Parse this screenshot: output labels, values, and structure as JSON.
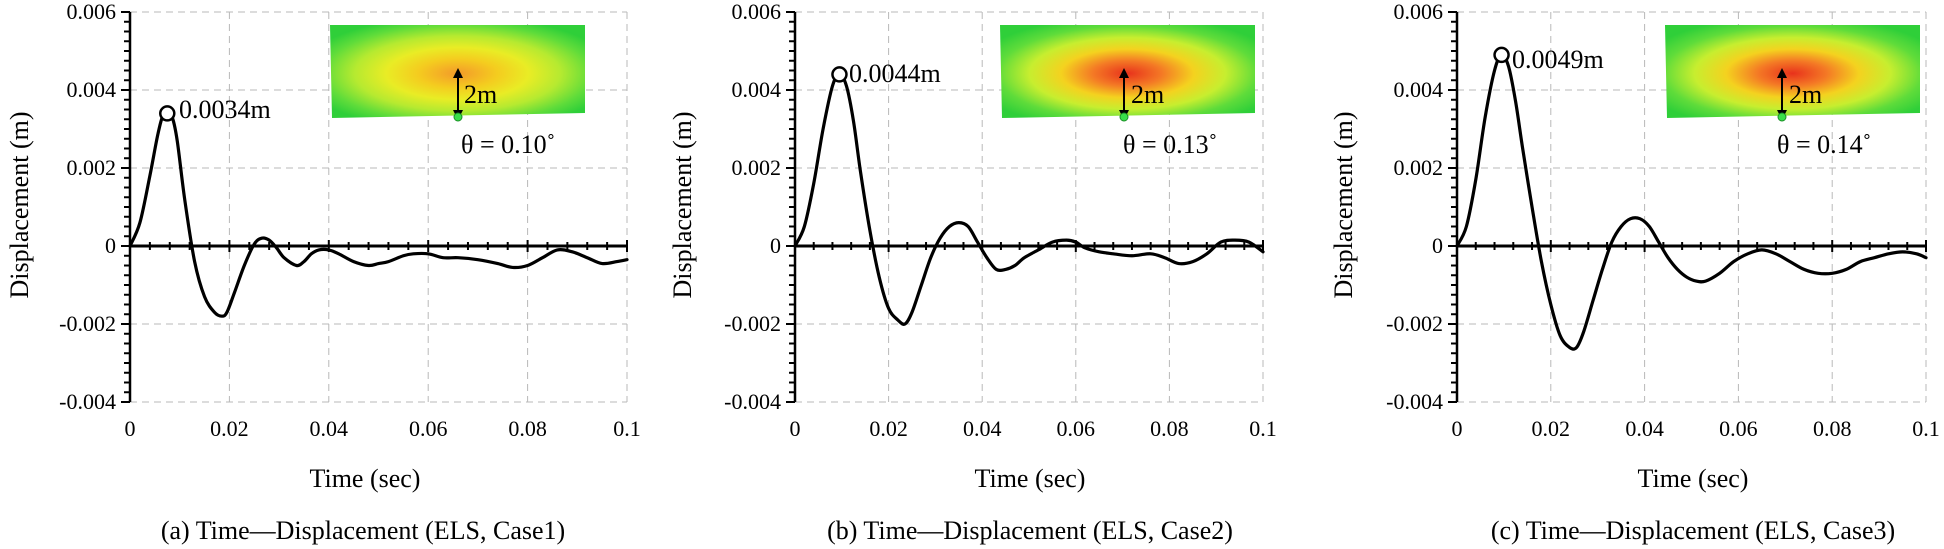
{
  "chart_data": [
    {
      "type": "line",
      "caption": "(a) Time—Displacement (ELS, Case1)",
      "xlabel": "Time (sec)",
      "ylabel": "Displacement (m)",
      "xlim": [
        0,
        0.1
      ],
      "ylim": [
        -0.004,
        0.006
      ],
      "xticks": [
        "0",
        "0.02",
        "0.04",
        "0.06",
        "0.08",
        "0.1"
      ],
      "yticks": [
        "-0.004",
        "-0.002",
        "0",
        "0.002",
        "0.004",
        "0.006"
      ],
      "grid": true,
      "peak": {
        "x": 0.0075,
        "y": 0.0034,
        "label": "0.0034m"
      },
      "inset": {
        "depth_label": "2m",
        "theta_label": "θ = 0.10˚"
      },
      "series": [
        {
          "x": [
            0,
            0.002,
            0.004,
            0.0055,
            0.0065,
            0.0075,
            0.0085,
            0.0095,
            0.011,
            0.013,
            0.015,
            0.017,
            0.0185,
            0.0195,
            0.021,
            0.023,
            0.025,
            0.0265,
            0.028,
            0.0295,
            0.031,
            0.0335,
            0.035,
            0.0365,
            0.038,
            0.04,
            0.042,
            0.045,
            0.048,
            0.05,
            0.052,
            0.055,
            0.057,
            0.06,
            0.063,
            0.066,
            0.07,
            0.074,
            0.077,
            0.08,
            0.083,
            0.086,
            0.089,
            0.092,
            0.095,
            0.098,
            0.1
          ],
          "y": [
            0,
            0.0006,
            0.0018,
            0.0028,
            0.0033,
            0.0034,
            0.0033,
            0.0027,
            0.0012,
            -0.0004,
            -0.0013,
            -0.0017,
            -0.0018,
            -0.0017,
            -0.0012,
            -0.0005,
            5e-05,
            0.0002,
            0.00015,
            -5e-05,
            -0.0003,
            -0.0005,
            -0.0004,
            -0.0002,
            -0.0001,
            -0.0001,
            -0.0002,
            -0.0004,
            -0.0005,
            -0.00045,
            -0.0004,
            -0.00025,
            -0.0002,
            -0.0002,
            -0.0003,
            -0.0003,
            -0.00035,
            -0.00045,
            -0.00055,
            -0.0005,
            -0.0003,
            -0.0001,
            -0.00015,
            -0.0003,
            -0.00045,
            -0.0004,
            -0.00035
          ]
        }
      ]
    },
    {
      "type": "line",
      "caption": "(b) Time—Displacement (ELS, Case2)",
      "xlabel": "Time (sec)",
      "ylabel": "Displacement (m)",
      "xlim": [
        0,
        0.1
      ],
      "ylim": [
        -0.004,
        0.006
      ],
      "xticks": [
        "0",
        "0.02",
        "0.04",
        "0.06",
        "0.08",
        "0.1"
      ],
      "yticks": [
        "-0.004",
        "-0.002",
        "0",
        "0.002",
        "0.004",
        "0.006"
      ],
      "grid": true,
      "peak": {
        "x": 0.0095,
        "y": 0.0044,
        "label": "0.0044m"
      },
      "inset": {
        "depth_label": "2m",
        "theta_label": "θ = 0.13˚"
      },
      "series": [
        {
          "x": [
            0,
            0.002,
            0.004,
            0.006,
            0.008,
            0.0095,
            0.011,
            0.0125,
            0.014,
            0.016,
            0.018,
            0.02,
            0.022,
            0.0235,
            0.025,
            0.027,
            0.029,
            0.031,
            0.033,
            0.035,
            0.037,
            0.039,
            0.041,
            0.043,
            0.045,
            0.047,
            0.049,
            0.052,
            0.055,
            0.058,
            0.06,
            0.062,
            0.065,
            0.068,
            0.072,
            0.076,
            0.079,
            0.082,
            0.085,
            0.088,
            0.091,
            0.094,
            0.097,
            0.1
          ],
          "y": [
            0,
            0.0005,
            0.0016,
            0.003,
            0.0041,
            0.0044,
            0.0041,
            0.0032,
            0.0019,
            0.0004,
            -0.0008,
            -0.0016,
            -0.0019,
            -0.002,
            -0.0017,
            -0.001,
            -0.0003,
            0.0002,
            0.0005,
            0.0006,
            0.0005,
            0.0001,
            -0.0003,
            -0.0006,
            -0.0006,
            -0.0005,
            -0.0003,
            -0.0001,
            0.0001,
            0.00015,
            0.0001,
            -5e-05,
            -0.00015,
            -0.0002,
            -0.00025,
            -0.0002,
            -0.0003,
            -0.00045,
            -0.0004,
            -0.0002,
            0.0001,
            0.00015,
            0.0001,
            -0.00015
          ]
        }
      ]
    },
    {
      "type": "line",
      "caption": "(c) Time—Displacement (ELS, Case3)",
      "xlabel": "Time (sec)",
      "ylabel": "Displacement (m)",
      "xlim": [
        0,
        0.1
      ],
      "ylim": [
        -0.004,
        0.006
      ],
      "xticks": [
        "0",
        "0.02",
        "0.04",
        "0.06",
        "0.08",
        "0.1"
      ],
      "yticks": [
        "-0.004",
        "-0.002",
        "0",
        "0.002",
        "0.004",
        "0.006"
      ],
      "grid": true,
      "peak": {
        "x": 0.0095,
        "y": 0.0049,
        "label": "0.0049m"
      },
      "inset": {
        "depth_label": "2m",
        "theta_label": "θ = 0.14˚"
      },
      "series": [
        {
          "x": [
            0,
            0.002,
            0.004,
            0.006,
            0.008,
            0.0095,
            0.011,
            0.0125,
            0.014,
            0.016,
            0.018,
            0.02,
            0.022,
            0.024,
            0.0255,
            0.027,
            0.029,
            0.031,
            0.033,
            0.035,
            0.037,
            0.039,
            0.041,
            0.043,
            0.045,
            0.047,
            0.049,
            0.051,
            0.053,
            0.056,
            0.059,
            0.062,
            0.065,
            0.068,
            0.071,
            0.074,
            0.077,
            0.08,
            0.083,
            0.086,
            0.089,
            0.092,
            0.095,
            0.098,
            0.1
          ],
          "y": [
            0,
            0.0005,
            0.0017,
            0.0033,
            0.0045,
            0.0049,
            0.0046,
            0.0037,
            0.0025,
            0.001,
            -0.0004,
            -0.0015,
            -0.0023,
            -0.0026,
            -0.0026,
            -0.0022,
            -0.0014,
            -0.0006,
            0.0001,
            0.0005,
            0.0007,
            0.0007,
            0.0005,
            0.0001,
            -0.0003,
            -0.0006,
            -0.0008,
            -0.0009,
            -0.0009,
            -0.0007,
            -0.0004,
            -0.0002,
            -0.0001,
            -0.0002,
            -0.0004,
            -0.0006,
            -0.0007,
            -0.0007,
            -0.0006,
            -0.0004,
            -0.0003,
            -0.0002,
            -0.00015,
            -0.0002,
            -0.0003
          ]
        }
      ]
    }
  ]
}
